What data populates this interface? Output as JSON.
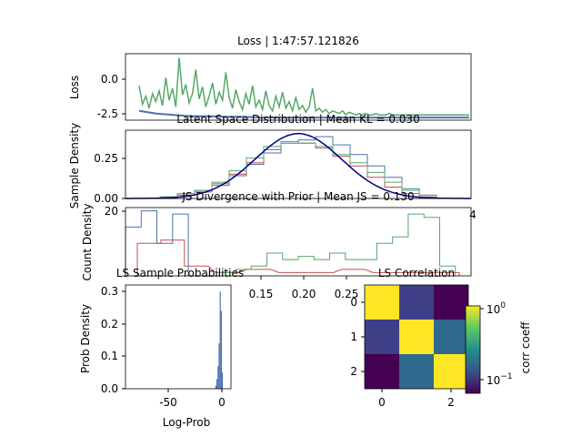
{
  "chart_data": [
    {
      "type": "line",
      "title": "Loss | 1:47:57.121826",
      "ylabel": "Loss",
      "xlim": [
        0,
        100
      ],
      "ylim": [
        -3.0,
        2.0
      ],
      "yticks": [
        "0.0",
        "-2.5"
      ],
      "series": [
        {
          "color": "#55a868",
          "values": [
            -0.4,
            -1.8,
            -1.2,
            -2.1,
            -1.0,
            -1.6,
            -0.8,
            -1.9,
            0.2,
            -1.5,
            -0.6,
            -2.0,
            1.7,
            -1.1,
            -0.3,
            -1.7,
            -1.0,
            0.8,
            -1.4,
            -0.5,
            -2.0,
            -1.2,
            -0.2,
            -1.8,
            -0.9,
            -1.5,
            0.6,
            -1.3,
            -2.1,
            -0.7,
            -1.6,
            -2.2,
            -1.0,
            -1.8,
            -0.4,
            -2.0,
            -1.5,
            -2.2,
            -0.8,
            -1.9,
            -2.3,
            -1.2,
            -2.0,
            -0.9,
            -2.1,
            -1.6,
            -2.3,
            -1.3,
            -2.2,
            -1.9,
            -2.4,
            -2.0,
            -0.6,
            -2.3,
            -2.1,
            -2.4,
            -2.2,
            -2.5,
            -2.3,
            -2.4,
            -2.5,
            -2.3,
            -2.6,
            -2.4,
            -2.5,
            -2.6,
            -2.5,
            -2.6,
            -2.5,
            -2.6,
            -2.6,
            -2.5,
            -2.6,
            -2.6,
            -2.6,
            -2.5,
            -2.6,
            -2.6,
            -2.6,
            -2.6,
            -2.6,
            -2.6,
            -2.6,
            -2.6,
            -2.6,
            -2.6,
            -2.6,
            -2.6,
            -2.6,
            -2.6,
            -2.6,
            -2.6,
            -2.6,
            -2.6,
            -2.6,
            -2.6,
            -2.6,
            -2.6,
            -2.6,
            -2.6
          ]
        },
        {
          "color": "#4c72b0",
          "values": [
            -2.3,
            -2.5,
            -2.6,
            -2.7,
            -2.7,
            -2.75,
            -2.75,
            -2.8,
            -2.8,
            -2.8,
            -2.8,
            -2.8,
            -2.8,
            -2.8,
            -2.8,
            -2.8,
            -2.8,
            -2.8,
            -2.8,
            -2.8
          ]
        }
      ]
    },
    {
      "type": "line",
      "title": "Latent Space Distribution | Mean KL = 0.030",
      "ylabel": "Sample Density",
      "xlim": [
        -4,
        4
      ],
      "ylim": [
        0,
        0.42
      ],
      "yticks": [
        "0.00",
        "0.25"
      ],
      "xtick_visible": "4",
      "series": [
        {
          "color": "#4c72b0",
          "x": [
            -3.0,
            -2.6,
            -2.2,
            -1.8,
            -1.4,
            -1.0,
            -0.6,
            -0.2,
            0.2,
            0.6,
            1.0,
            1.4,
            1.8,
            2.2,
            2.6,
            3.0
          ],
          "values": [
            0.01,
            0.02,
            0.05,
            0.09,
            0.14,
            0.21,
            0.28,
            0.34,
            0.36,
            0.38,
            0.33,
            0.27,
            0.2,
            0.13,
            0.06,
            0.02
          ]
        },
        {
          "color": "#c44e52",
          "x": [
            -3.0,
            -2.6,
            -2.2,
            -1.8,
            -1.4,
            -1.0,
            -0.6,
            -0.2,
            0.2,
            0.6,
            1.0,
            1.4,
            1.8,
            2.2,
            2.6,
            3.0
          ],
          "values": [
            0.0,
            0.02,
            0.04,
            0.08,
            0.15,
            0.22,
            0.3,
            0.35,
            0.34,
            0.31,
            0.26,
            0.2,
            0.13,
            0.07,
            0.03,
            0.01
          ]
        },
        {
          "color": "#55a868",
          "x": [
            -3.0,
            -2.6,
            -2.2,
            -1.8,
            -1.4,
            -1.0,
            -0.6,
            -0.2,
            0.2,
            0.6,
            1.0,
            1.4,
            1.8,
            2.2,
            2.6,
            3.0
          ],
          "values": [
            0.01,
            0.03,
            0.05,
            0.1,
            0.17,
            0.25,
            0.32,
            0.35,
            0.34,
            0.32,
            0.27,
            0.22,
            0.16,
            0.1,
            0.05,
            0.02
          ]
        },
        {
          "color": "#00008b",
          "curve": "normal-pdf",
          "mean": 0,
          "std": 1
        }
      ]
    },
    {
      "type": "line",
      "title": "JS Divergence with Prior | Mean JS = 0.130",
      "ylabel": "Count Density",
      "xlim": [
        0.095,
        0.315
      ],
      "ylim": [
        0,
        21
      ],
      "yticks": [
        "20"
      ],
      "xticks": [
        "0.15",
        "0.20",
        "0.25"
      ],
      "series": [
        {
          "color": "#4c72b0",
          "x": [
            0.1,
            0.11,
            0.12,
            0.13
          ],
          "values": [
            15,
            20,
            10,
            19
          ]
        },
        {
          "color": "#c44e52",
          "x": [
            0.11,
            0.125,
            0.14,
            0.16,
            0.18,
            0.2,
            0.22,
            0.24,
            0.26,
            0.28,
            0.3
          ],
          "values": [
            10,
            11,
            3,
            1,
            2,
            1,
            1,
            2,
            1,
            1,
            1
          ]
        },
        {
          "color": "#55a868",
          "x": [
            0.15,
            0.16,
            0.17,
            0.18,
            0.19,
            0.2,
            0.21,
            0.22,
            0.23,
            0.24,
            0.25,
            0.26,
            0.27,
            0.28,
            0.29,
            0.3
          ],
          "values": [
            0,
            1,
            2,
            3,
            7,
            5,
            6,
            5,
            7,
            5,
            5,
            10,
            12,
            19,
            18,
            3
          ]
        }
      ]
    },
    {
      "type": "bar",
      "title": "LS Sample Probabilities",
      "xlabel": "Log-Prob",
      "ylabel": "Prob Density",
      "xlim": [
        -88,
        10
      ],
      "ylim": [
        0,
        0.32
      ],
      "xticks": [
        "-50",
        "0"
      ],
      "yticks": [
        "0.0",
        "0.1",
        "0.2",
        "0.3"
      ],
      "x": [
        -4,
        -3,
        -2,
        -1,
        0,
        1,
        2
      ],
      "values": [
        0.01,
        0.03,
        0.07,
        0.14,
        0.3,
        0.24,
        0.05
      ]
    },
    {
      "type": "heatmap",
      "title": "LS Correlation",
      "colorbar_label": "corr coeff",
      "colorbar_ticks": [
        "10",
        "10"
      ],
      "colorbar_exponents": [
        "0",
        "−1"
      ],
      "xticks": [
        "0",
        "2"
      ],
      "yticks": [
        "0",
        "1",
        "2"
      ],
      "matrix": [
        [
          1.0,
          0.095,
          0.06
        ],
        [
          0.095,
          1.0,
          0.18
        ],
        [
          0.06,
          0.18,
          1.0
        ]
      ],
      "colors": [
        [
          "#fde725",
          "#3e3f87",
          "#440154"
        ],
        [
          "#3e3f87",
          "#fde725",
          "#30698e"
        ],
        [
          "#440154",
          "#30698e",
          "#fde725"
        ]
      ]
    }
  ]
}
